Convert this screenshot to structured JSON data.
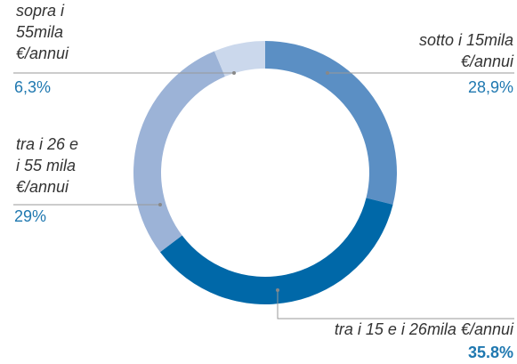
{
  "chart_data": {
    "type": "donut",
    "categories": [
      "sotto i 15mila\n€/annui",
      "tra i 15 e i 26mila €/annui",
      "tra i 26 e\ni 55 mila\n€/annui",
      "sopra i\n55mila\n€/annui"
    ],
    "values": [
      28.9,
      35.8,
      29,
      6.3
    ],
    "value_labels": [
      "28,9%",
      "35.8%",
      "29%",
      "6,3%"
    ],
    "colors": [
      "#5b8fc4",
      "#0068a8",
      "#9cb3d7",
      "#cbd8ec"
    ]
  }
}
